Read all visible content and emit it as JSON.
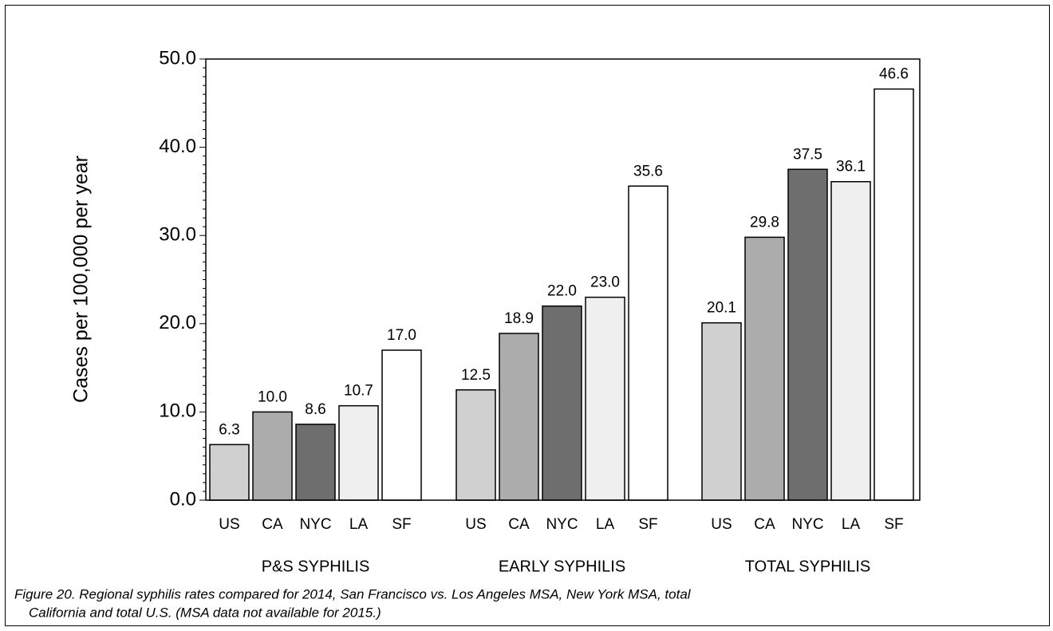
{
  "chart_data": {
    "type": "bar",
    "y_label": "Cases per 100,000 per year",
    "categories": [
      "P&S SYPHILIS",
      "EARLY SYPHILIS",
      "TOTAL SYPHILIS"
    ],
    "series": [
      {
        "name": "US",
        "color": "#d0d0d0",
        "values": [
          6.3,
          12.5,
          20.1
        ],
        "value_labels": [
          "6.3",
          "12.5",
          "20.1"
        ]
      },
      {
        "name": "CA",
        "color": "#acacac",
        "values": [
          10.0,
          18.9,
          29.8
        ],
        "value_labels": [
          "10.0",
          "18.9",
          "29.8"
        ]
      },
      {
        "name": "NYC",
        "color": "#6e6e6e",
        "values": [
          8.6,
          22.0,
          37.5
        ],
        "value_labels": [
          "8.6",
          "22.0",
          "37.5"
        ]
      },
      {
        "name": "LA",
        "color": "#efefef",
        "values": [
          10.7,
          23.0,
          36.1
        ],
        "value_labels": [
          "10.7",
          "23.0",
          "36.1"
        ]
      },
      {
        "name": "SF",
        "color": "#ffffff",
        "values": [
          17.0,
          35.6,
          46.6
        ],
        "value_labels": [
          "17.0",
          "35.6",
          "46.6"
        ]
      }
    ],
    "ylim": [
      0,
      50
    ],
    "yticks": [
      {
        "value": 0,
        "label": "0.0"
      },
      {
        "value": 10,
        "label": "10.0"
      },
      {
        "value": 20,
        "label": "20.0"
      },
      {
        "value": 30,
        "label": "30.0"
      },
      {
        "value": 40,
        "label": "40.0"
      },
      {
        "value": 50,
        "label": "50.0"
      }
    ],
    "caption": [
      "Figure 20.  Regional syphilis rates compared for 2014, San Francisco vs. Los Angeles MSA, New York MSA, total",
      "California and total U.S.  (MSA data not available for 2015.)"
    ]
  }
}
